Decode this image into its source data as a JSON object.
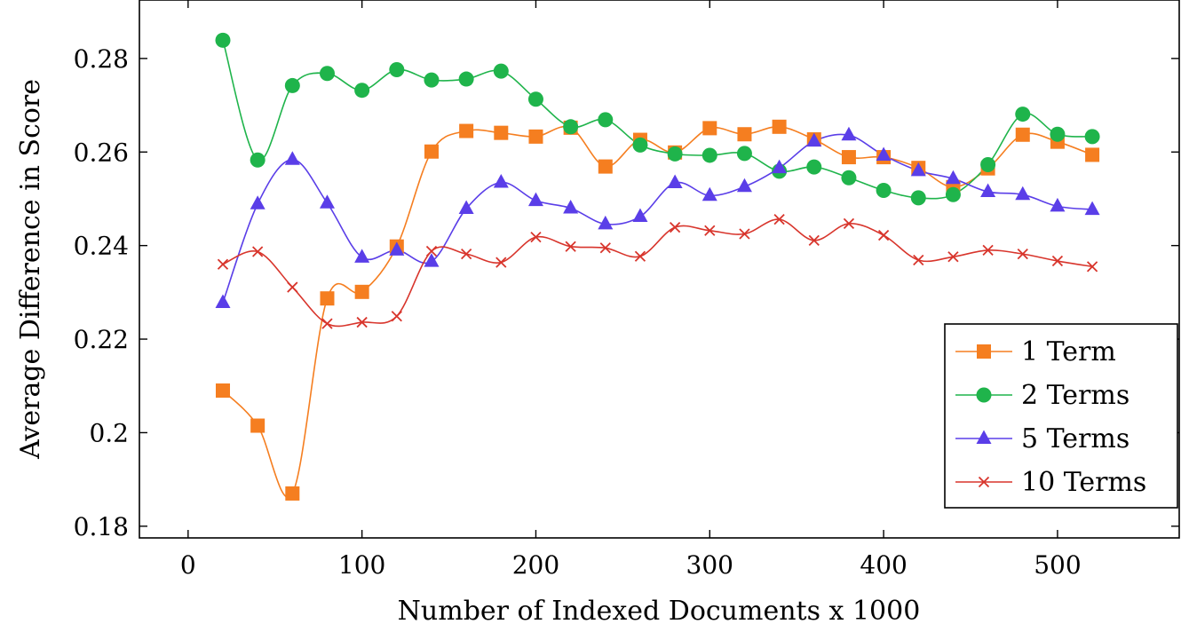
{
  "chart_data": {
    "type": "line",
    "title": "",
    "xlabel": "Number of Indexed Documents x 1000",
    "ylabel": "Average Difference in Score",
    "xlim": [
      -28,
      570
    ],
    "ylim": [
      0.1775,
      0.2925
    ],
    "xticks": [
      0,
      100,
      200,
      300,
      400,
      500
    ],
    "yticks": [
      0.18,
      0.2,
      0.22,
      0.24,
      0.26,
      0.28
    ],
    "ytick_labels": [
      "0.18",
      "0.2",
      "0.22",
      "0.24",
      "0.26",
      "0.28"
    ],
    "grid": false,
    "smooth": true,
    "legend_position": "bottom-right",
    "x": [
      20,
      40,
      60,
      80,
      100,
      120,
      140,
      160,
      180,
      200,
      220,
      240,
      260,
      280,
      300,
      320,
      340,
      360,
      380,
      400,
      420,
      440,
      460,
      480,
      500,
      520
    ],
    "series": [
      {
        "name": "1 Term",
        "color": "#f57e20",
        "marker": "square",
        "values": [
          0.209,
          0.2015,
          0.187,
          0.2287,
          0.2301,
          0.2398,
          0.2601,
          0.2645,
          0.2641,
          0.2633,
          0.2652,
          0.2569,
          0.2626,
          0.2599,
          0.2651,
          0.2638,
          0.2654,
          0.2627,
          0.2589,
          0.2589,
          0.2566,
          0.2525,
          0.2565,
          0.2637,
          0.2622,
          0.2594
        ]
      },
      {
        "name": "2 Terms",
        "color": "#1fb44b",
        "marker": "circle",
        "values": [
          0.2839,
          0.2583,
          0.2742,
          0.2768,
          0.2732,
          0.2776,
          0.2754,
          0.2756,
          0.2773,
          0.2713,
          0.2654,
          0.2669,
          0.2615,
          0.2596,
          0.2593,
          0.2597,
          0.2559,
          0.2568,
          0.2545,
          0.2518,
          0.2502,
          0.2509,
          0.2573,
          0.2681,
          0.2638,
          0.2633
        ]
      },
      {
        "name": "5 Terms",
        "color": "#5a3ee8",
        "marker": "triangle",
        "values": [
          0.2278,
          0.2489,
          0.2584,
          0.2491,
          0.2375,
          0.239,
          0.2366,
          0.2479,
          0.2535,
          0.2496,
          0.248,
          0.2446,
          0.2462,
          0.2534,
          0.2507,
          0.2526,
          0.2566,
          0.2623,
          0.2636,
          0.2593,
          0.256,
          0.2543,
          0.2515,
          0.2509,
          0.2484,
          0.2477
        ]
      },
      {
        "name": "10 Terms",
        "color": "#d8352c",
        "marker": "cross",
        "values": [
          0.236,
          0.2387,
          0.2311,
          0.2233,
          0.2236,
          0.2249,
          0.2388,
          0.2382,
          0.2364,
          0.2418,
          0.2398,
          0.2395,
          0.2377,
          0.2439,
          0.2432,
          0.2425,
          0.2456,
          0.2411,
          0.2447,
          0.2422,
          0.2369,
          0.2376,
          0.239,
          0.2382,
          0.2367,
          0.2355
        ]
      }
    ]
  }
}
